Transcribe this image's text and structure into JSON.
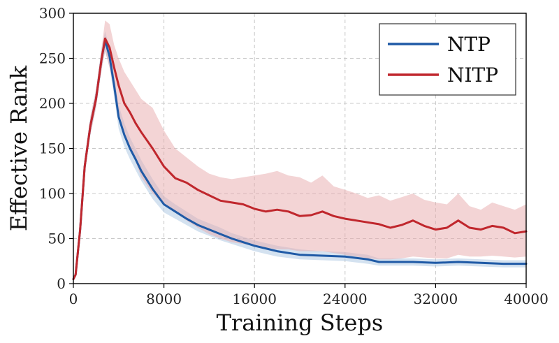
{
  "chart_data": {
    "type": "line",
    "title": "",
    "xlabel": "Training Steps",
    "ylabel": "Effective Rank",
    "xlim": [
      0,
      40000
    ],
    "ylim": [
      0,
      300
    ],
    "xticks": [
      0,
      8000,
      16000,
      24000,
      32000,
      40000
    ],
    "xtick_labels": [
      "0",
      "8000",
      "16000",
      "24000",
      "32000",
      "40000"
    ],
    "yticks": [
      0,
      50,
      100,
      150,
      200,
      250,
      300
    ],
    "ytick_labels": [
      "0",
      "50",
      "100",
      "150",
      "200",
      "250",
      "300"
    ],
    "grid": true,
    "legend_position": "top-right",
    "series": [
      {
        "name": "NTP",
        "color": "#1f5aa6",
        "band_color": "#a9c5e2",
        "x": [
          0,
          200,
          600,
          1000,
          1500,
          2000,
          2500,
          2800,
          3200,
          3600,
          4000,
          4500,
          5000,
          5500,
          6000,
          7000,
          8000,
          9000,
          10000,
          11000,
          12000,
          13000,
          14000,
          15000,
          16000,
          18000,
          20000,
          22000,
          24000,
          26000,
          27000,
          28000,
          30000,
          32000,
          34000,
          36000,
          38000,
          40000
        ],
        "y": [
          5,
          10,
          60,
          130,
          175,
          205,
          250,
          270,
          252,
          220,
          185,
          165,
          150,
          138,
          125,
          105,
          88,
          80,
          72,
          65,
          60,
          55,
          50,
          46,
          42,
          36,
          32,
          31,
          30,
          27,
          24,
          24,
          24,
          23,
          24,
          23,
          22,
          22
        ],
        "lower": [
          4,
          8,
          55,
          122,
          165,
          195,
          238,
          258,
          240,
          208,
          172,
          152,
          138,
          126,
          114,
          94,
          79,
          72,
          65,
          58,
          53,
          48,
          44,
          40,
          36,
          30,
          27,
          26,
          25,
          22,
          20,
          20,
          20,
          19,
          20,
          19,
          18,
          18
        ],
        "upper": [
          6,
          12,
          65,
          138,
          185,
          215,
          262,
          280,
          262,
          232,
          198,
          178,
          162,
          150,
          137,
          116,
          97,
          88,
          80,
          72,
          67,
          62,
          56,
          52,
          48,
          42,
          38,
          36,
          35,
          32,
          28,
          28,
          28,
          27,
          28,
          27,
          26,
          26
        ]
      },
      {
        "name": "NITP",
        "color": "#c0272d",
        "band_color": "#e8a9ac",
        "x": [
          0,
          200,
          600,
          1000,
          1500,
          2000,
          2500,
          2800,
          3200,
          3600,
          4000,
          4500,
          5000,
          5500,
          6000,
          7000,
          8000,
          9000,
          10000,
          11000,
          12000,
          13000,
          14000,
          15000,
          16000,
          17000,
          18000,
          19000,
          20000,
          21000,
          22000,
          23000,
          24000,
          25000,
          26000,
          27000,
          28000,
          29000,
          30000,
          31000,
          32000,
          33000,
          34000,
          35000,
          36000,
          37000,
          38000,
          39000,
          40000
        ],
        "y": [
          5,
          10,
          60,
          130,
          175,
          205,
          250,
          272,
          262,
          240,
          220,
          200,
          190,
          178,
          168,
          150,
          130,
          117,
          112,
          104,
          98,
          92,
          90,
          88,
          83,
          80,
          82,
          80,
          75,
          76,
          80,
          75,
          72,
          70,
          68,
          66,
          62,
          65,
          70,
          64,
          60,
          62,
          70,
          62,
          60,
          64,
          62,
          56,
          58
        ],
        "lower": [
          4,
          8,
          55,
          122,
          165,
          195,
          238,
          258,
          240,
          215,
          190,
          168,
          150,
          135,
          118,
          100,
          88,
          80,
          70,
          62,
          55,
          50,
          46,
          44,
          42,
          40,
          38,
          38,
          36,
          36,
          36,
          34,
          32,
          30,
          28,
          27,
          27,
          28,
          30,
          29,
          28,
          28,
          32,
          30,
          30,
          31,
          30,
          29,
          30
        ],
        "upper": [
          6,
          12,
          65,
          138,
          185,
          215,
          262,
          292,
          288,
          265,
          250,
          235,
          225,
          215,
          205,
          195,
          170,
          150,
          140,
          130,
          122,
          118,
          116,
          118,
          120,
          122,
          125,
          120,
          118,
          112,
          120,
          108,
          104,
          100,
          95,
          98,
          92,
          96,
          100,
          93,
          90,
          88,
          100,
          86,
          82,
          90,
          86,
          82,
          88
        ]
      }
    ]
  }
}
